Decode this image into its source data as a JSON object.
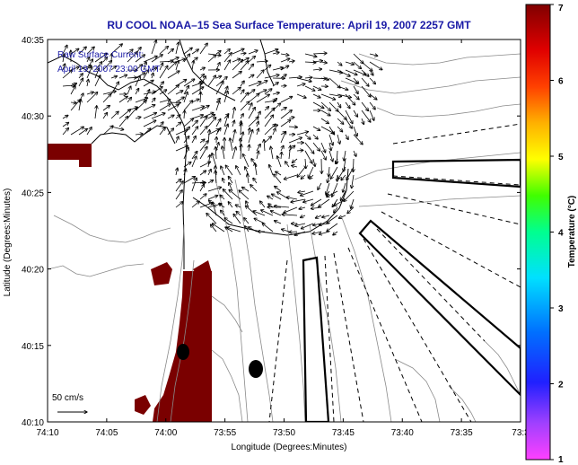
{
  "title": "RU COOL  NOAA–15  Sea Surface Temperature:  April 19, 2007 2257 GMT",
  "annotation": {
    "line1": "Raw Surface Current:",
    "line2": "April 19, 2007 23:00 GMT"
  },
  "scale_label": "50 cm/s",
  "axes": {
    "xlabel": "Longitude (Degrees:Minutes)",
    "ylabel": "Latitude (Degrees:Minutes)",
    "xticks": [
      "74:10",
      "74:05",
      "74:00",
      "73:55",
      "73:50",
      "73:45",
      "73:40",
      "73:35",
      "73:3"
    ],
    "yticks": [
      "40:35",
      "40:30",
      "40:25",
      "40:20",
      "40:15",
      "40:10"
    ]
  },
  "colorbar": {
    "label": "Temperature (°C)",
    "ticks": [
      "7",
      "6",
      "5",
      "4",
      "3",
      "2",
      "1"
    ],
    "range": [
      1,
      7
    ]
  },
  "colors": {
    "title": "#1a1aa6",
    "land_warm": "#7a0000",
    "contour": "#8a8a8a"
  }
}
